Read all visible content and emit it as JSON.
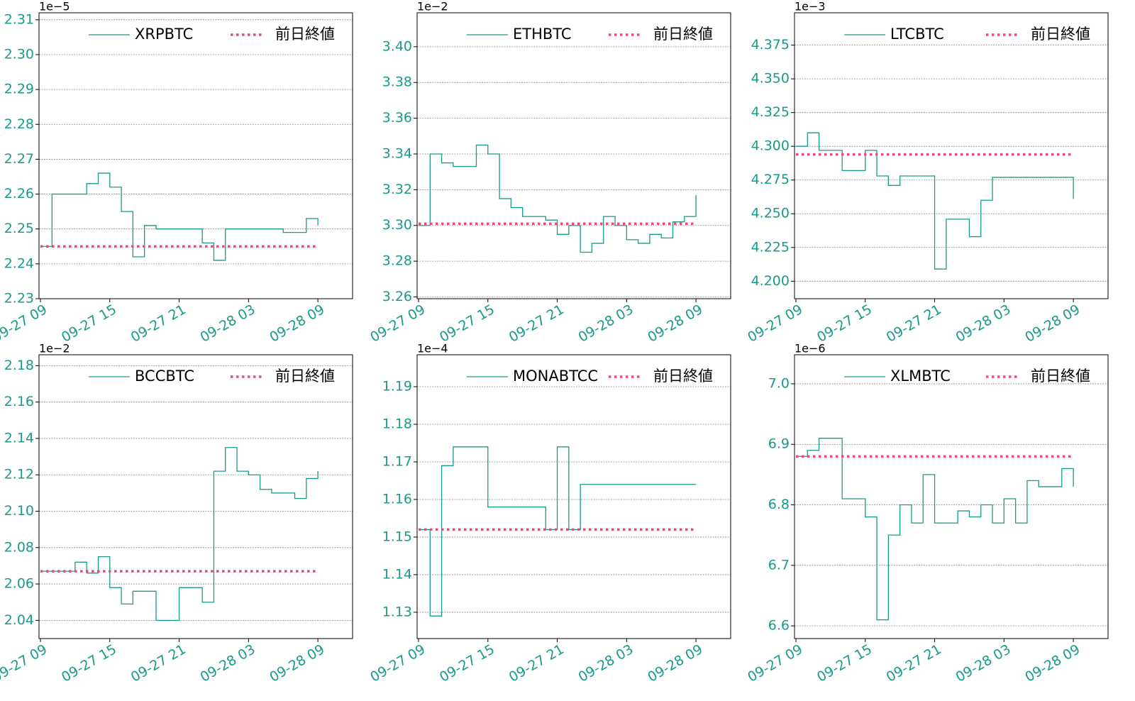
{
  "chart_data": [
    {
      "type": "line",
      "offset_label": "1e−5",
      "legend": "upper right",
      "grid": true,
      "x": [
        "09-27 09",
        "09-27 10",
        "09-27 11",
        "09-27 12",
        "09-27 13",
        "09-27 14",
        "09-27 15",
        "09-27 16",
        "09-27 17",
        "09-27 18",
        "09-27 19",
        "09-27 20",
        "09-27 21",
        "09-27 22",
        "09-27 23",
        "09-28 00",
        "09-28 01",
        "09-28 02",
        "09-28 03",
        "09-28 04",
        "09-28 05",
        "09-28 06",
        "09-28 07",
        "09-28 08",
        "09-28 09"
      ],
      "xlim": [
        "09-27 09",
        "09-28 12"
      ],
      "xticks": [
        "09-27 09",
        "09-27 15",
        "09-27 21",
        "09-28 03",
        "09-28 09"
      ],
      "ylim": [
        2.23,
        2.312
      ],
      "yticks": [
        2.23,
        2.24,
        2.25,
        2.26,
        2.27,
        2.28,
        2.29,
        {
          "value": 2.3,
          "label": "2.30"
        },
        2.31
      ],
      "series": [
        {
          "name": "XRPBTC",
          "color": "#1a9a8a",
          "drawstyle": "steps-post",
          "values": [
            2.245,
            2.26,
            2.26,
            2.26,
            2.263,
            2.266,
            2.262,
            2.255,
            2.242,
            2.251,
            2.25,
            2.25,
            2.25,
            2.25,
            2.246,
            2.241,
            2.25,
            2.25,
            2.25,
            2.25,
            2.25,
            2.249,
            2.249,
            2.253,
            2.251
          ]
        },
        {
          "name": "前日終値",
          "color": "#e0507a",
          "linestyle": "dotted",
          "values": [
            2.245,
            2.245,
            2.245,
            2.245,
            2.245,
            2.245,
            2.245,
            2.245,
            2.245,
            2.245,
            2.245,
            2.245,
            2.245,
            2.245,
            2.245,
            2.245,
            2.245,
            2.245,
            2.245,
            2.245,
            2.245,
            2.245,
            2.245,
            2.245,
            2.245
          ]
        }
      ]
    },
    {
      "type": "line",
      "offset_label": "1e−2",
      "legend": "upper right",
      "grid": true,
      "x": [
        "09-27 09",
        "09-27 10",
        "09-27 11",
        "09-27 12",
        "09-27 13",
        "09-27 14",
        "09-27 15",
        "09-27 16",
        "09-27 17",
        "09-27 18",
        "09-27 19",
        "09-27 20",
        "09-27 21",
        "09-27 22",
        "09-27 23",
        "09-28 00",
        "09-28 01",
        "09-28 02",
        "09-28 03",
        "09-28 04",
        "09-28 05",
        "09-28 06",
        "09-28 07",
        "09-28 08",
        "09-28 09"
      ],
      "xlim": [
        "09-27 09",
        "09-28 12"
      ],
      "xticks": [
        "09-27 09",
        "09-27 15",
        "09-27 21",
        "09-28 03",
        "09-28 09"
      ],
      "ylim": [
        3.259,
        3.419
      ],
      "yticks": [
        3.26,
        3.28,
        {
          "value": 3.3,
          "label": "3.30"
        },
        3.32,
        3.34,
        3.36,
        3.38,
        {
          "value": 3.4,
          "label": "3.40"
        }
      ],
      "series": [
        {
          "name": "ETHBTC",
          "color": "#1a9a8a",
          "drawstyle": "steps-post",
          "values": [
            3.3,
            3.34,
            3.335,
            3.333,
            3.333,
            3.345,
            3.34,
            3.315,
            3.31,
            3.305,
            3.305,
            3.303,
            3.295,
            3.3,
            3.285,
            3.29,
            3.305,
            3.3,
            3.292,
            3.29,
            3.295,
            3.293,
            3.302,
            3.305,
            3.317
          ]
        },
        {
          "name": "前日終値",
          "color": "#e0507a",
          "linestyle": "dotted",
          "values": [
            3.301,
            3.301,
            3.301,
            3.301,
            3.301,
            3.301,
            3.301,
            3.301,
            3.301,
            3.301,
            3.301,
            3.301,
            3.301,
            3.301,
            3.301,
            3.301,
            3.301,
            3.301,
            3.301,
            3.301,
            3.301,
            3.301,
            3.301,
            3.301,
            3.301
          ]
        }
      ]
    },
    {
      "type": "line",
      "offset_label": "1e−3",
      "legend": "upper right",
      "grid": true,
      "x": [
        "09-27 09",
        "09-27 10",
        "09-27 11",
        "09-27 12",
        "09-27 13",
        "09-27 14",
        "09-27 15",
        "09-27 16",
        "09-27 17",
        "09-27 18",
        "09-27 19",
        "09-27 20",
        "09-27 21",
        "09-27 22",
        "09-27 23",
        "09-28 00",
        "09-28 01",
        "09-28 02",
        "09-28 03",
        "09-28 04",
        "09-28 05",
        "09-28 06",
        "09-28 07",
        "09-28 08",
        "09-28 09"
      ],
      "xlim": [
        "09-27 09",
        "09-28 12"
      ],
      "xticks": [
        "09-27 09",
        "09-27 15",
        "09-27 21",
        "09-28 03",
        "09-28 09"
      ],
      "ylim": [
        4.187,
        4.399
      ],
      "yticks": [
        {
          "value": 4.2,
          "label": "4.200"
        },
        4.225,
        {
          "value": 4.25,
          "label": "4.250"
        },
        4.275,
        {
          "value": 4.3,
          "label": "4.300"
        },
        4.325,
        {
          "value": 4.35,
          "label": "4.350"
        },
        4.375
      ],
      "series": [
        {
          "name": "LTCBTC",
          "color": "#1a9a8a",
          "drawstyle": "steps-post",
          "values": [
            4.3,
            4.31,
            4.297,
            4.297,
            4.282,
            4.282,
            4.297,
            4.278,
            4.271,
            4.278,
            4.278,
            4.278,
            4.209,
            4.246,
            4.246,
            4.233,
            4.26,
            4.277,
            4.277,
            4.277,
            4.277,
            4.277,
            4.277,
            4.277,
            4.261
          ]
        },
        {
          "name": "前日終値",
          "color": "#e0507a",
          "linestyle": "dotted",
          "values": [
            4.294,
            4.294,
            4.294,
            4.294,
            4.294,
            4.294,
            4.294,
            4.294,
            4.294,
            4.294,
            4.294,
            4.294,
            4.294,
            4.294,
            4.294,
            4.294,
            4.294,
            4.294,
            4.294,
            4.294,
            4.294,
            4.294,
            4.294,
            4.294,
            4.294
          ]
        }
      ]
    },
    {
      "type": "line",
      "offset_label": "1e−2",
      "legend": "upper right",
      "grid": true,
      "x": [
        "09-27 09",
        "09-27 10",
        "09-27 11",
        "09-27 12",
        "09-27 13",
        "09-27 14",
        "09-27 15",
        "09-27 16",
        "09-27 17",
        "09-27 18",
        "09-27 19",
        "09-27 20",
        "09-27 21",
        "09-27 22",
        "09-27 23",
        "09-28 00",
        "09-28 01",
        "09-28 02",
        "09-28 03",
        "09-28 04",
        "09-28 05",
        "09-28 06",
        "09-28 07",
        "09-28 08",
        "09-28 09"
      ],
      "xlim": [
        "09-27 09",
        "09-28 12"
      ],
      "xticks": [
        "09-27 09",
        "09-27 15",
        "09-27 21",
        "09-28 03",
        "09-28 09"
      ],
      "ylim": [
        2.03,
        2.186
      ],
      "yticks": [
        2.04,
        2.06,
        2.08,
        {
          "value": 2.1,
          "label": "2.10"
        },
        2.12,
        2.14,
        2.16,
        2.18
      ],
      "series": [
        {
          "name": "BCCBTC",
          "color": "#1a9a8a",
          "drawstyle": "steps-post",
          "values": [
            2.067,
            2.067,
            2.067,
            2.072,
            2.066,
            2.075,
            2.058,
            2.049,
            2.056,
            2.056,
            2.04,
            2.04,
            2.058,
            2.058,
            2.05,
            2.122,
            2.135,
            2.122,
            2.12,
            2.112,
            2.11,
            2.11,
            2.107,
            2.118,
            2.122
          ]
        },
        {
          "name": "前日終値",
          "color": "#e0507a",
          "linestyle": "dotted",
          "values": [
            2.067,
            2.067,
            2.067,
            2.067,
            2.067,
            2.067,
            2.067,
            2.067,
            2.067,
            2.067,
            2.067,
            2.067,
            2.067,
            2.067,
            2.067,
            2.067,
            2.067,
            2.067,
            2.067,
            2.067,
            2.067,
            2.067,
            2.067,
            2.067,
            2.067
          ]
        }
      ]
    },
    {
      "type": "line",
      "offset_label": "1e−4",
      "legend": "upper right",
      "grid": true,
      "x": [
        "09-27 09",
        "09-27 10",
        "09-27 11",
        "09-27 12",
        "09-27 13",
        "09-27 14",
        "09-27 15",
        "09-27 16",
        "09-27 17",
        "09-27 18",
        "09-27 19",
        "09-27 20",
        "09-27 21",
        "09-27 22",
        "09-27 23",
        "09-28 00",
        "09-28 01",
        "09-28 02",
        "09-28 03",
        "09-28 04",
        "09-28 05",
        "09-28 06",
        "09-28 07",
        "09-28 08",
        "09-28 09"
      ],
      "xlim": [
        "09-27 09",
        "09-28 12"
      ],
      "xticks": [
        "09-27 09",
        "09-27 15",
        "09-27 21",
        "09-28 03",
        "09-28 09"
      ],
      "ylim": [
        1.123,
        1.1985
      ],
      "yticks": [
        1.13,
        1.14,
        1.15,
        1.16,
        1.17,
        1.18,
        1.19
      ],
      "series": [
        {
          "name": "MONABTCC",
          "color": "#1a9a8a",
          "drawstyle": "steps-post",
          "values": [
            1.152,
            1.129,
            1.169,
            1.174,
            1.174,
            1.174,
            1.158,
            1.158,
            1.158,
            1.158,
            1.158,
            1.152,
            1.174,
            1.152,
            1.164,
            1.164,
            1.164,
            1.164,
            1.164,
            1.164,
            1.164,
            1.164,
            1.164,
            1.164,
            1.164
          ]
        },
        {
          "name": "前日終値",
          "color": "#e0507a",
          "linestyle": "dotted",
          "values": [
            1.152,
            1.152,
            1.152,
            1.152,
            1.152,
            1.152,
            1.152,
            1.152,
            1.152,
            1.152,
            1.152,
            1.152,
            1.152,
            1.152,
            1.152,
            1.152,
            1.152,
            1.152,
            1.152,
            1.152,
            1.152,
            1.152,
            1.152,
            1.152,
            1.152
          ]
        }
      ]
    },
    {
      "type": "line",
      "offset_label": "1e−6",
      "legend": "upper right",
      "grid": true,
      "x": [
        "09-27 09",
        "09-27 10",
        "09-27 11",
        "09-27 12",
        "09-27 13",
        "09-27 14",
        "09-27 15",
        "09-27 16",
        "09-27 17",
        "09-27 18",
        "09-27 19",
        "09-27 20",
        "09-27 21",
        "09-27 22",
        "09-27 23",
        "09-28 00",
        "09-28 01",
        "09-28 02",
        "09-28 03",
        "09-28 04",
        "09-28 05",
        "09-28 06",
        "09-28 07",
        "09-28 08",
        "09-28 09"
      ],
      "xlim": [
        "09-27 09",
        "09-28 12"
      ],
      "xticks": [
        "09-27 09",
        "09-27 15",
        "09-27 21",
        "09-28 03",
        "09-28 09"
      ],
      "ylim": [
        6.579,
        7.048
      ],
      "yticks": [
        6.6,
        6.7,
        6.8,
        6.9,
        {
          "value": 7,
          "label": "7.0"
        }
      ],
      "series": [
        {
          "name": "XLMBTC",
          "color": "#1a9a8a",
          "drawstyle": "steps-post",
          "values": [
            6.88,
            6.89,
            6.91,
            6.91,
            6.81,
            6.81,
            6.78,
            6.61,
            6.75,
            6.8,
            6.77,
            6.85,
            6.77,
            6.77,
            6.79,
            6.78,
            6.8,
            6.77,
            6.81,
            6.77,
            6.84,
            6.83,
            6.83,
            6.86,
            6.83
          ]
        },
        {
          "name": "前日終値",
          "color": "#e0507a",
          "linestyle": "dotted",
          "values": [
            6.88,
            6.88,
            6.88,
            6.88,
            6.88,
            6.88,
            6.88,
            6.88,
            6.88,
            6.88,
            6.88,
            6.88,
            6.88,
            6.88,
            6.88,
            6.88,
            6.88,
            6.88,
            6.88,
            6.88,
            6.88,
            6.88,
            6.88,
            6.88,
            6.88
          ]
        }
      ]
    }
  ]
}
